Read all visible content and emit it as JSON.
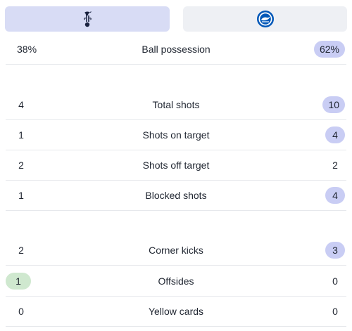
{
  "teams": {
    "home": {
      "crest_icon": "spurs-crest-icon"
    },
    "away": {
      "crest_icon": "brighton-crest-icon"
    }
  },
  "colors": {
    "home_tab": "#d8dcf5",
    "away_tab": "#eef0f4",
    "highlight_blue": "#c9cdf4",
    "highlight_green": "#cfe8cf"
  },
  "stats": [
    {
      "label": "Ball possession",
      "home": "38%",
      "away": "62%",
      "highlight": "away"
    },
    {
      "label": "Total shots",
      "home": "4",
      "away": "10",
      "highlight": "away"
    },
    {
      "label": "Shots on target",
      "home": "1",
      "away": "4",
      "highlight": "away"
    },
    {
      "label": "Shots off target",
      "home": "2",
      "away": "2",
      "highlight": "none"
    },
    {
      "label": "Blocked shots",
      "home": "1",
      "away": "4",
      "highlight": "away"
    },
    {
      "label": "Corner kicks",
      "home": "2",
      "away": "3",
      "highlight": "away"
    },
    {
      "label": "Offsides",
      "home": "1",
      "away": "0",
      "highlight": "home"
    },
    {
      "label": "Yellow cards",
      "home": "0",
      "away": "0",
      "highlight": "none"
    }
  ]
}
